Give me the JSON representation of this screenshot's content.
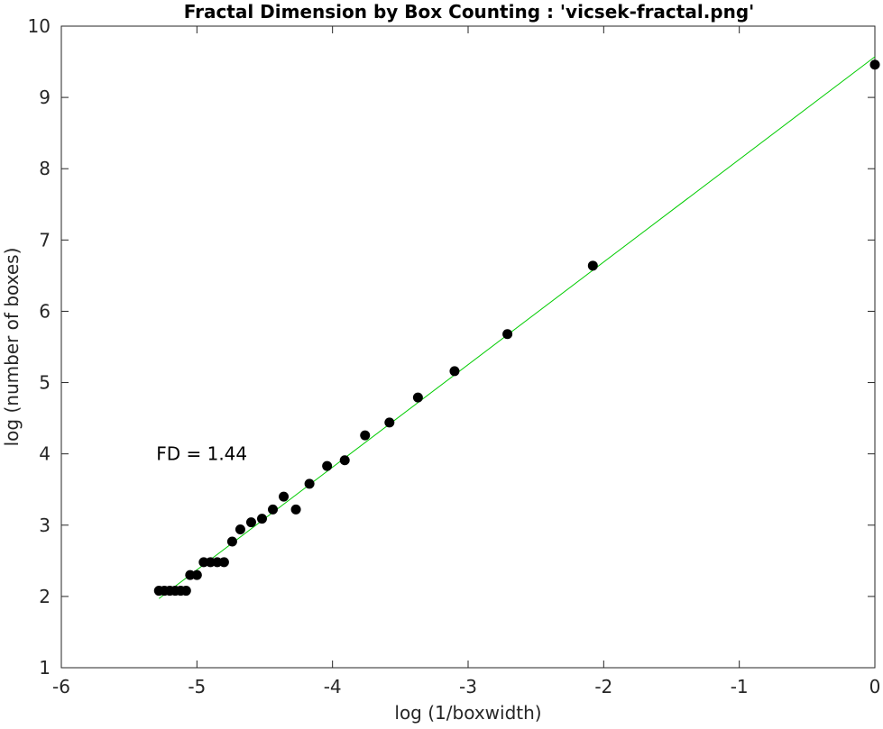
{
  "chart_data": {
    "type": "scatter",
    "title": "Fractal Dimension by Box Counting : 'vicsek-fractal.png'",
    "xlabel": "log (1/boxwidth)",
    "ylabel": "log (number of boxes)",
    "xlim": [
      -6,
      0
    ],
    "ylim": [
      1,
      10
    ],
    "xticks": [
      -6,
      -5,
      -4,
      -3,
      -2,
      -1,
      0
    ],
    "xtick_labels": [
      "-6",
      "-5",
      "-4",
      "-3",
      "-2",
      "-1",
      "0"
    ],
    "yticks": [
      1,
      2,
      3,
      4,
      5,
      6,
      7,
      8,
      9,
      10
    ],
    "ytick_labels": [
      "1",
      "2",
      "3",
      "4",
      "5",
      "6",
      "7",
      "8",
      "9",
      "10"
    ],
    "grid": false,
    "annotation": {
      "text": "FD = 1.44",
      "x": -5.3,
      "y": 4.0
    },
    "colors": {
      "points": "#000000",
      "fit_line": "#00cc00",
      "axes": "#262626"
    },
    "series": [
      {
        "kind": "points",
        "x": [
          -5.28,
          -5.24,
          -5.2,
          -5.16,
          -5.12,
          -5.08,
          -5.05,
          -5.0,
          -4.95,
          -4.9,
          -4.85,
          -4.8,
          -4.74,
          -4.68,
          -4.6,
          -4.52,
          -4.44,
          -4.36,
          -4.27,
          -4.17,
          -4.04,
          -3.91,
          -3.76,
          -3.58,
          -3.37,
          -3.1,
          -2.71,
          -2.08,
          0.0
        ],
        "y": [
          2.08,
          2.08,
          2.08,
          2.08,
          2.08,
          2.08,
          2.3,
          2.3,
          2.48,
          2.48,
          2.48,
          2.48,
          2.77,
          2.94,
          3.04,
          3.09,
          3.22,
          3.4,
          3.22,
          3.58,
          3.83,
          3.91,
          4.26,
          4.44,
          4.79,
          5.16,
          5.68,
          6.64,
          9.46
        ]
      },
      {
        "kind": "fit_line",
        "x": [
          -5.28,
          0.0
        ],
        "y": [
          1.97,
          9.57
        ]
      }
    ]
  }
}
